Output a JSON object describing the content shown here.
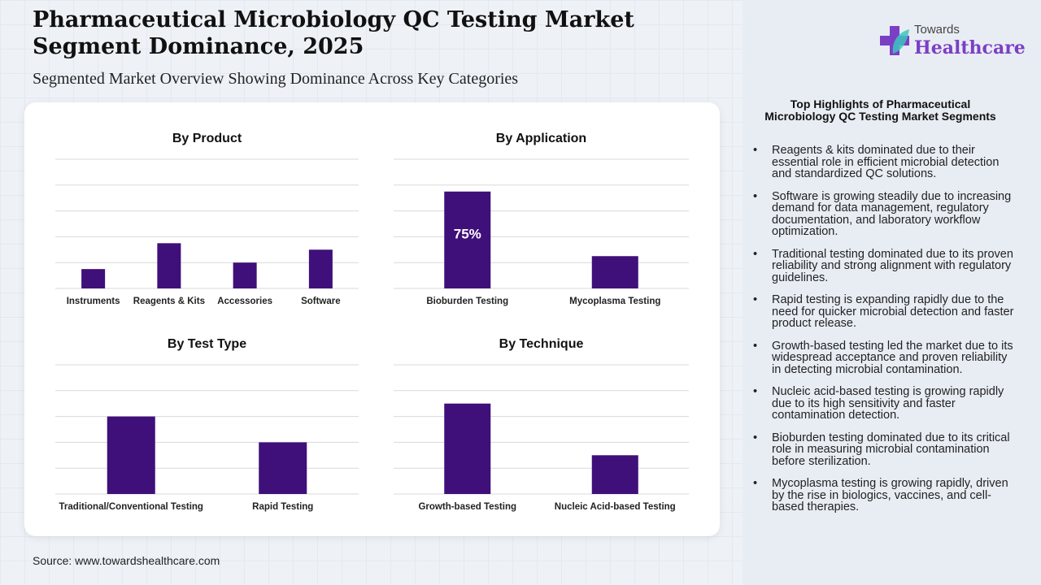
{
  "title": "Pharmaceutical Microbiology QC Testing Market Segment Dominance, 2025",
  "subtitle": "Segmented Market Overview Showing Dominance Across Key Categories",
  "source": "Source: www.towardshealthcare.com",
  "logo": {
    "line1": "Towards",
    "line2": "Healthcare"
  },
  "colors": {
    "bar": "#3f0f7a",
    "accent": "#7b3fc4"
  },
  "highlights": {
    "title": "Top Highlights of Pharmaceutical Microbiology QC Testing Market Segments",
    "items": [
      "Reagents & kits dominated due to their essential role in efficient microbial detection and standardized QC solutions.",
      "Software is growing steadily due to increasing demand for data management, regulatory documentation, and laboratory workflow optimization.",
      "Traditional testing dominated due to its proven reliability and strong alignment with regulatory guidelines.",
      "Rapid testing is expanding rapidly due to the need for quicker microbial detection and faster product release.",
      "Growth-based testing led the market due to its widespread acceptance and proven reliability in detecting microbial contamination.",
      "Nucleic acid-based testing is growing rapidly due to its high sensitivity and faster contamination detection.",
      "Bioburden testing dominated due to its critical role in measuring microbial contamination before sterilization.",
      "Mycoplasma testing is growing rapidly, driven by the rise in biologics, vaccines, and cell-based therapies."
    ]
  },
  "chart_data": [
    {
      "type": "bar",
      "title": "By Product",
      "categories": [
        "Instruments",
        "Reagents & Kits",
        "Accessories",
        "Software"
      ],
      "values": [
        15,
        35,
        20,
        30
      ],
      "labels": [
        null,
        null,
        null,
        null
      ],
      "ylim": [
        0,
        100
      ],
      "grid": true
    },
    {
      "type": "bar",
      "title": "By Application",
      "categories": [
        "Bioburden Testing",
        "Mycoplasma Testing"
      ],
      "values": [
        75,
        25
      ],
      "labels": [
        "75%",
        null
      ],
      "ylim": [
        0,
        100
      ],
      "grid": true
    },
    {
      "type": "bar",
      "title": "By Test Type",
      "categories": [
        "Traditional/Conventional Testing",
        "Rapid Testing"
      ],
      "values": [
        60,
        40
      ],
      "labels": [
        null,
        null
      ],
      "ylim": [
        0,
        100
      ],
      "grid": true
    },
    {
      "type": "bar",
      "title": "By Technique",
      "categories": [
        "Growth-based Testing",
        "Nucleic Acid-based Testing"
      ],
      "values": [
        70,
        30
      ],
      "labels": [
        null,
        null
      ],
      "ylim": [
        0,
        100
      ],
      "grid": true
    }
  ]
}
